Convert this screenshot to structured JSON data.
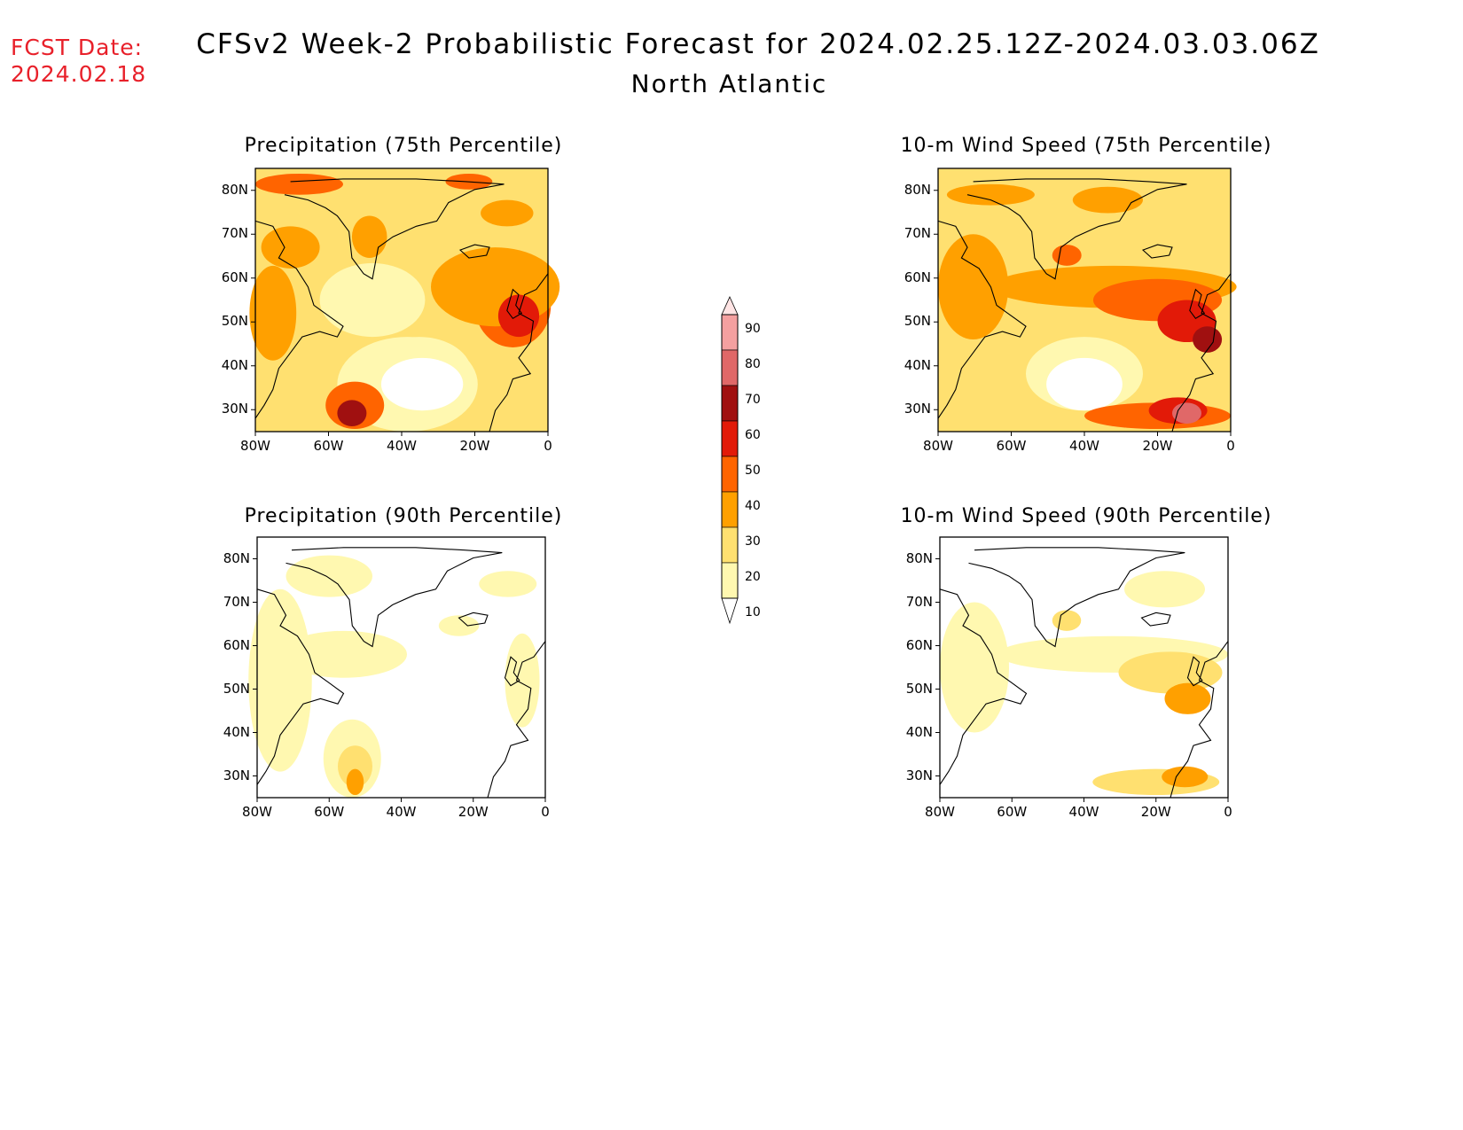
{
  "header": {
    "fcst_label": "FCST Date:",
    "fcst_date": "2024.02.18",
    "title": "CFSv2 Week-2 Probabilistic Forecast for 2024.02.25.12Z-2024.03.03.06Z",
    "subtitle": "North Atlantic"
  },
  "panels": [
    {
      "id": "p75",
      "title": "Precipitation (75th Percentile)"
    },
    {
      "id": "p90",
      "title": "Precipitation (90th Percentile)"
    },
    {
      "id": "w75",
      "title": "10-m Wind Speed (75th Percentile)"
    },
    {
      "id": "w90",
      "title": "10-m Wind Speed (90th Percentile)"
    }
  ],
  "axes": {
    "lat_labels": [
      "80N",
      "70N",
      "60N",
      "50N",
      "40N",
      "30N"
    ],
    "lon_labels": [
      "80W",
      "60W",
      "40W",
      "20W",
      "0"
    ],
    "lon_range": [
      -80,
      0
    ],
    "lat_range": [
      25,
      85
    ]
  },
  "colorbar": {
    "levels": [
      "90",
      "80",
      "70",
      "60",
      "50",
      "40",
      "30",
      "20",
      "10"
    ],
    "colors": [
      "#ffe4e4",
      "#f4a0a0",
      "#e06868",
      "#a01010",
      "#e21a08",
      "#ff6400",
      "#ffa000",
      "#ffe070",
      "#fff8b0"
    ]
  }
}
